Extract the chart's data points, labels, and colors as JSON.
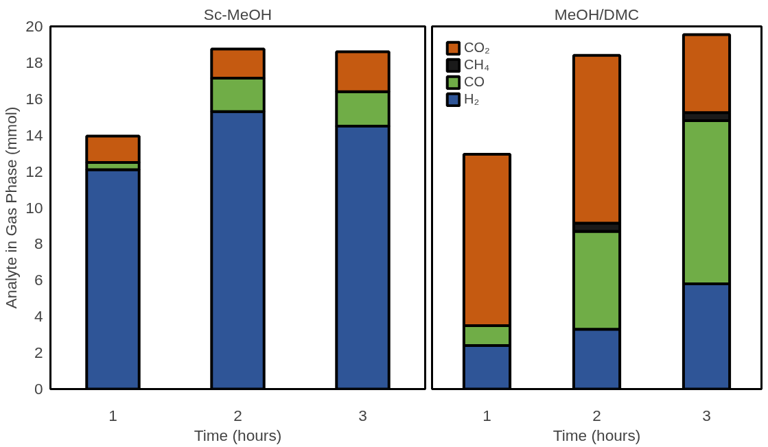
{
  "chart_data": [
    {
      "type": "bar",
      "title": "Sc-MeOH",
      "xlabel": "Time (hours)",
      "ylabel": "Analyte in Gas Phase (mmol)",
      "categories": [
        "1",
        "2",
        "3"
      ],
      "stacked": true,
      "ylim": [
        0,
        20
      ],
      "yticks": [
        0,
        2,
        4,
        6,
        8,
        10,
        12,
        14,
        16,
        18,
        20
      ],
      "grid": false,
      "legend": false,
      "series": [
        {
          "color": "#2f5597",
          "values": [
            12.1,
            15.3,
            14.5
          ]
        },
        {
          "color": "#70ad47",
          "values": [
            0.4,
            1.85,
            1.9
          ]
        },
        {
          "color": "#c55a11",
          "values": [
            1.45,
            1.6,
            2.2
          ]
        }
      ]
    },
    {
      "type": "bar",
      "title": "MeOH/DMC",
      "xlabel": "Time (hours)",
      "categories": [
        "1",
        "2",
        "3"
      ],
      "stacked": true,
      "ylim": [
        0,
        20
      ],
      "yticks": [
        0,
        2,
        4,
        6,
        8,
        10,
        12,
        14,
        16,
        18,
        20
      ],
      "grid": false,
      "legend": "top left",
      "tick_labels": "x",
      "series": [
        {
          "name": "H₂",
          "color": "#2f5597",
          "values": [
            2.4,
            3.3,
            5.8
          ]
        },
        {
          "name": "CO",
          "color": "#70ad47",
          "values": [
            1.1,
            5.4,
            9.0
          ]
        },
        {
          "name": "CH₄",
          "color": "#1a1a1a",
          "values": [
            null,
            0.45,
            0.45
          ]
        },
        {
          "name": "CO₂",
          "color": "#c55a11",
          "values": [
            9.45,
            9.25,
            4.3
          ]
        }
      ]
    }
  ]
}
